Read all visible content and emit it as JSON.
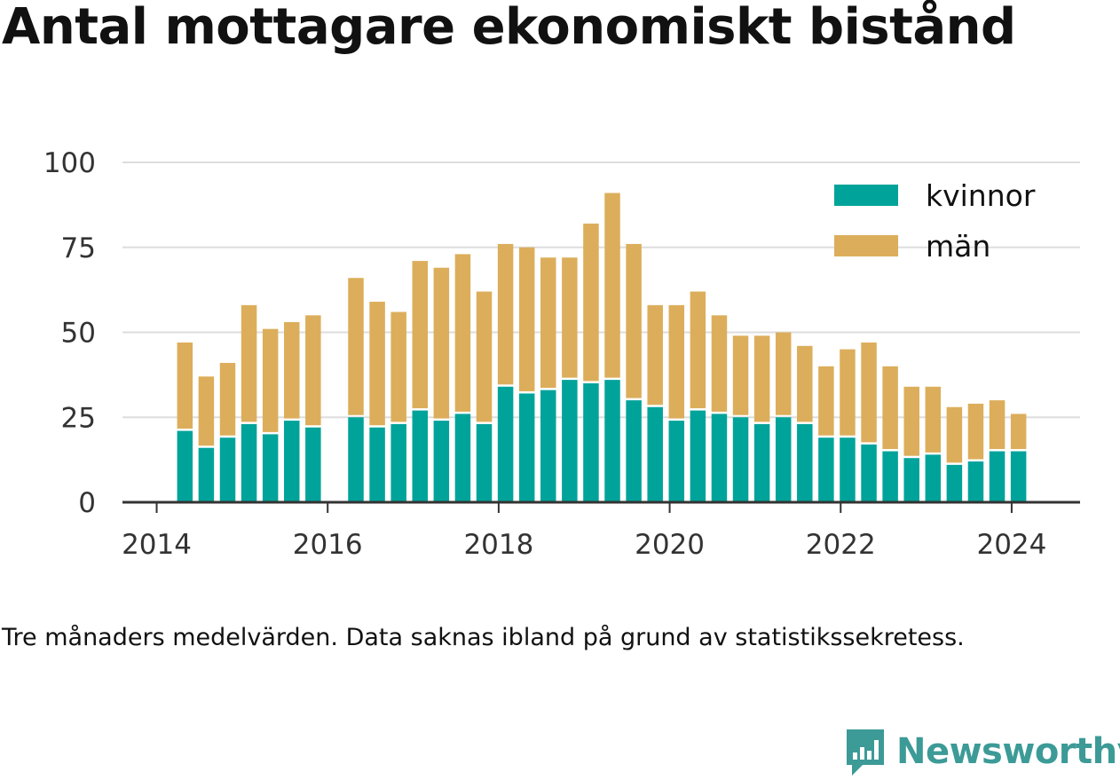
{
  "title": "Antal mottagare ekonomiskt bistånd",
  "caption": "Tre månaders medelvärden. Data saknas ibland på grund av statistikssekretess.",
  "brand": {
    "name": "Newsworthy",
    "icon": "bar-chart-speech-bubble-icon"
  },
  "colors": {
    "kvinnor": "#00a39a",
    "man": "#dcae5b",
    "grid": "#dddddd",
    "axis": "#333333"
  },
  "chart_data": {
    "type": "bar",
    "stacked": true,
    "title": "Antal mottagare ekonomiskt bistånd",
    "xlabel": "",
    "ylabel": "",
    "ylim": [
      0,
      100
    ],
    "yticks": [
      0,
      25,
      50,
      75,
      100
    ],
    "xticks": [
      "2014",
      "2016",
      "2018",
      "2020",
      "2022",
      "2024"
    ],
    "xlim": [
      2013.6,
      2024.8
    ],
    "legend_position": "top-right",
    "grid": true,
    "x": [
      2014.33,
      2014.58,
      2014.83,
      2015.08,
      2015.33,
      2015.58,
      2015.83,
      2016.33,
      2016.58,
      2016.83,
      2017.08,
      2017.33,
      2017.58,
      2017.83,
      2018.08,
      2018.33,
      2018.58,
      2018.83,
      2019.08,
      2019.33,
      2019.58,
      2019.83,
      2020.08,
      2020.33,
      2020.58,
      2020.83,
      2021.08,
      2021.33,
      2021.58,
      2021.83,
      2022.08,
      2022.33,
      2022.58,
      2022.83,
      2023.08,
      2023.33,
      2023.58,
      2023.83,
      2024.08
    ],
    "series": [
      {
        "name": "kvinnor",
        "color": "#00a39a",
        "values": [
          21,
          16,
          19,
          23,
          20,
          24,
          22,
          25,
          22,
          23,
          27,
          24,
          26,
          23,
          34,
          32,
          33,
          36,
          35,
          36,
          30,
          28,
          24,
          27,
          26,
          25,
          23,
          25,
          23,
          19,
          19,
          17,
          15,
          13,
          14,
          11,
          12,
          15,
          15
        ]
      },
      {
        "name": "män",
        "color": "#dcae5b",
        "values": [
          26,
          21,
          22,
          35,
          31,
          29,
          33,
          41,
          37,
          33,
          44,
          45,
          47,
          39,
          42,
          43,
          39,
          36,
          47,
          55,
          46,
          30,
          34,
          35,
          29,
          24,
          26,
          25,
          23,
          21,
          26,
          30,
          25,
          21,
          20,
          17,
          17,
          15,
          11
        ]
      }
    ]
  }
}
